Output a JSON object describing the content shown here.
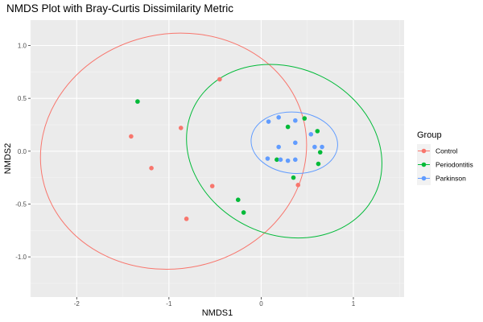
{
  "chart_data": {
    "type": "scatter",
    "title": "NMDS Plot with Bray-Curtis Dissimilarity Metric",
    "xlabel": "NMDS1",
    "ylabel": "NMDS2",
    "xlim": [
      -2.5,
      1.55
    ],
    "ylim": [
      -1.38,
      1.24
    ],
    "x_ticks": [
      -2,
      -1,
      0,
      1
    ],
    "x_tick_labels": [
      "-2",
      "-1",
      "0",
      "1"
    ],
    "y_ticks": [
      -1.0,
      -0.5,
      0.0,
      0.5,
      1.0
    ],
    "y_tick_labels": [
      "-1.0",
      "-0.5",
      "0.0",
      "0.5",
      "1.0"
    ],
    "grid": true,
    "panel_background": "#ebebeb",
    "legend": {
      "title": "Group",
      "position": "right"
    },
    "series": [
      {
        "name": "Control",
        "color": "#f8766d",
        "points": [
          [
            -0.45,
            0.68
          ],
          [
            -0.87,
            0.22
          ],
          [
            -1.41,
            0.14
          ],
          [
            -1.19,
            -0.16
          ],
          [
            -0.53,
            -0.33
          ],
          [
            -0.81,
            -0.64
          ],
          [
            0.4,
            -0.32
          ]
        ],
        "ellipse": {
          "center": [
            -0.95,
            0.0
          ],
          "rx": 1.45,
          "ry": 1.11,
          "angle": -12
        }
      },
      {
        "name": "Periodontitis",
        "color": "#00ba38",
        "points": [
          [
            -1.34,
            0.47
          ],
          [
            0.47,
            0.31
          ],
          [
            0.29,
            0.23
          ],
          [
            0.61,
            0.19
          ],
          [
            0.64,
            -0.01
          ],
          [
            0.17,
            -0.08
          ],
          [
            0.62,
            -0.12
          ],
          [
            0.35,
            -0.25
          ],
          [
            -0.25,
            -0.46
          ],
          [
            -0.19,
            -0.58
          ]
        ],
        "ellipse": {
          "center": [
            0.25,
            0.0
          ],
          "rx": 1.09,
          "ry": 0.79,
          "angle": 25
        }
      },
      {
        "name": "Parkinson",
        "color": "#619cff",
        "points": [
          [
            0.19,
            0.32
          ],
          [
            0.08,
            0.28
          ],
          [
            0.37,
            0.29
          ],
          [
            0.54,
            0.16
          ],
          [
            0.37,
            0.08
          ],
          [
            0.19,
            0.04
          ],
          [
            0.58,
            0.04
          ],
          [
            0.66,
            0.04
          ],
          [
            0.07,
            -0.07
          ],
          [
            0.21,
            -0.08
          ],
          [
            0.29,
            -0.09
          ],
          [
            0.37,
            -0.08
          ]
        ],
        "ellipse": {
          "center": [
            0.36,
            0.08
          ],
          "rx": 0.47,
          "ry": 0.29,
          "angle": 5
        }
      }
    ]
  }
}
